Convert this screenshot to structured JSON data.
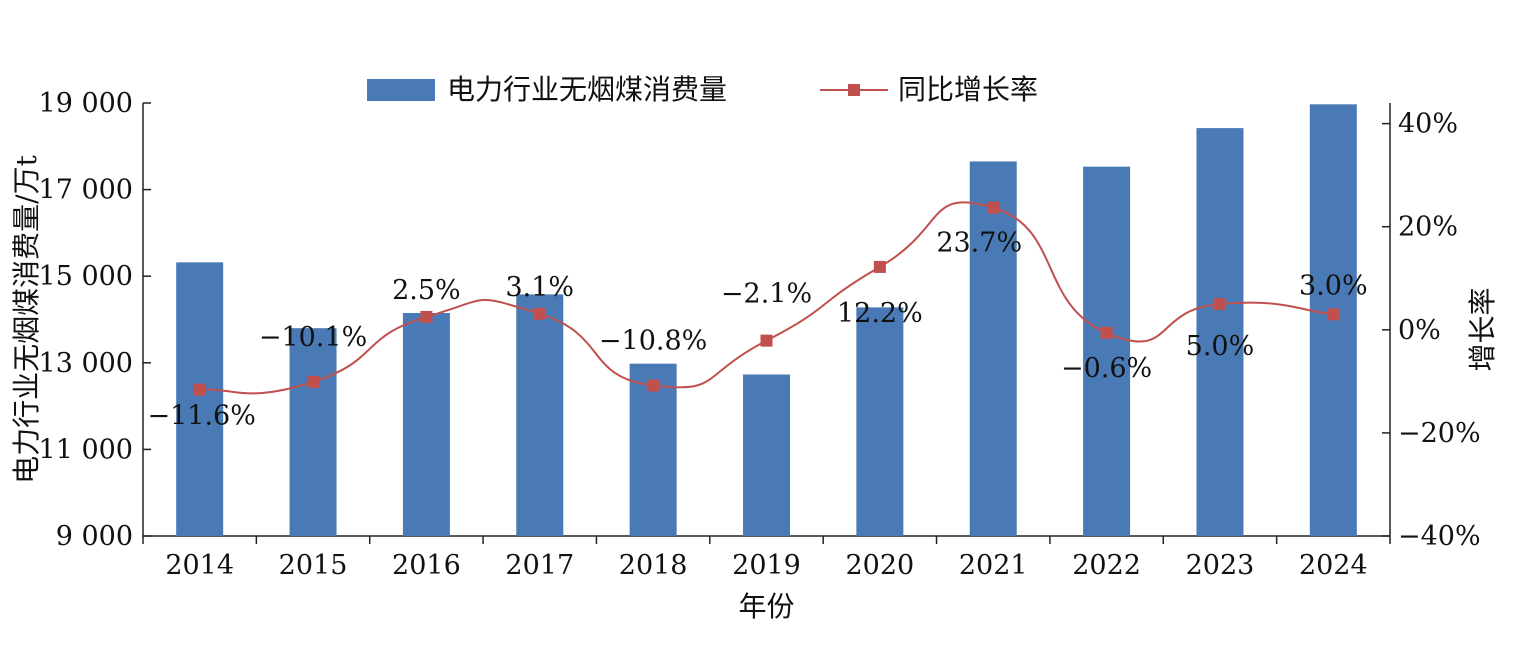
{
  "chart_data": {
    "type": "bar+line",
    "categories": [
      "2014",
      "2015",
      "2016",
      "2017",
      "2018",
      "2019",
      "2020",
      "2021",
      "2022",
      "2023",
      "2024"
    ],
    "series": [
      {
        "name": "电力行业无烟煤消费量",
        "type": "bar",
        "axis": "left",
        "color": "#4a7ab5",
        "values": [
          15320,
          13800,
          14150,
          14580,
          12980,
          12730,
          14280,
          17650,
          17530,
          18420,
          18970
        ]
      },
      {
        "name": "同比增长率",
        "type": "line",
        "axis": "right",
        "color": "#c0504d",
        "values": [
          -11.6,
          -10.1,
          2.5,
          3.1,
          -10.8,
          -2.1,
          12.2,
          23.7,
          -0.6,
          5.0,
          3.0
        ],
        "labels": [
          "−11.6%",
          "−10.1%",
          "2.5%",
          "3.1%",
          "−10.8%",
          "−2.1%",
          "12.2%",
          "23.7%",
          "−0.6%",
          "5.0%",
          "3.0%"
        ]
      }
    ],
    "xlabel": "年份",
    "ylabel": "电力行业无烟煤消费量/万t",
    "ylabel_right": "增长率",
    "ylim": [
      9000,
      19000
    ],
    "ylim_right": [
      -40,
      44
    ],
    "yticks": [
      "9 000",
      "11 000",
      "13 000",
      "15 000",
      "17 000",
      "19 000"
    ],
    "yticks_right": [
      "−40%",
      "−20%",
      "0%",
      "20%",
      "40%"
    ],
    "legend": "top-center",
    "grid": false
  }
}
